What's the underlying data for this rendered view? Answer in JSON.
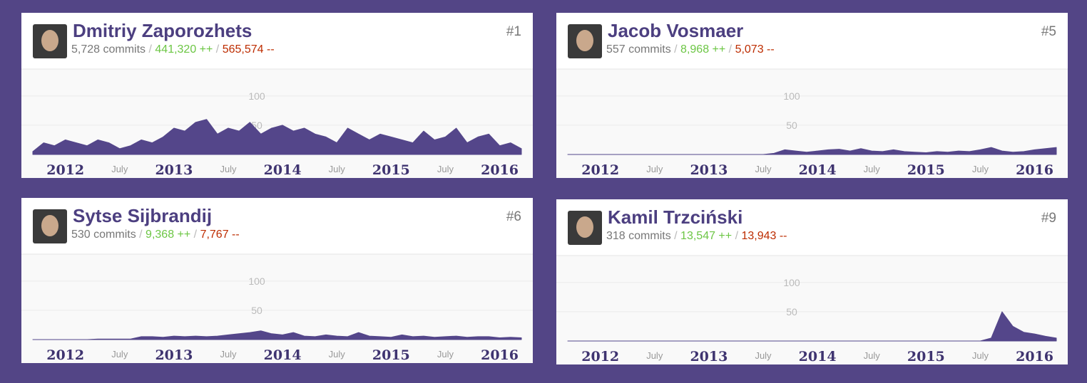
{
  "cards": [
    {
      "name": "Dmitriy Zaporozhets",
      "rank": "#1",
      "commits": "5,728 commits",
      "additions": "441,320 ++",
      "deletions": "565,574 --",
      "chart": {
        "type": "area",
        "color": "#54468a",
        "xlim": [
          2011.7,
          2016.2
        ],
        "ylim": [
          0,
          140
        ],
        "yticks": [
          50,
          100
        ],
        "grid": true,
        "xticks": [
          2012,
          {
            "value": 2012.5,
            "label": "July"
          },
          2013,
          {
            "value": 2013.5,
            "label": "July"
          },
          2014,
          {
            "value": 2014.5,
            "label": "July"
          },
          2015,
          {
            "value": 2015.5,
            "label": "July"
          },
          2016
        ],
        "x": [
          2011.7,
          2011.8,
          2011.9,
          2012.0,
          2012.1,
          2012.2,
          2012.3,
          2012.4,
          2012.5,
          2012.6,
          2012.7,
          2012.8,
          2012.9,
          2013.0,
          2013.1,
          2013.2,
          2013.3,
          2013.4,
          2013.5,
          2013.6,
          2013.7,
          2013.8,
          2013.9,
          2014.0,
          2014.1,
          2014.2,
          2014.3,
          2014.4,
          2014.5,
          2014.6,
          2014.7,
          2014.8,
          2014.9,
          2015.0,
          2015.1,
          2015.2,
          2015.3,
          2015.4,
          2015.5,
          2015.6,
          2015.7,
          2015.8,
          2015.9,
          2016.0,
          2016.1,
          2016.2
        ],
        "values": [
          5,
          20,
          15,
          25,
          20,
          15,
          25,
          20,
          10,
          15,
          25,
          20,
          30,
          45,
          40,
          55,
          60,
          35,
          45,
          40,
          55,
          35,
          45,
          50,
          40,
          45,
          35,
          30,
          20,
          45,
          35,
          25,
          35,
          30,
          25,
          20,
          40,
          25,
          30,
          45,
          20,
          30,
          35,
          15,
          20,
          10
        ]
      }
    },
    {
      "name": "Jacob Vosmaer",
      "rank": "#5",
      "commits": "557 commits",
      "additions": "8,968 ++",
      "deletions": "5,073 --",
      "chart": {
        "type": "area",
        "color": "#54468a",
        "xlim": [
          2011.7,
          2016.2
        ],
        "ylim": [
          0,
          140
        ],
        "yticks": [
          50,
          100
        ],
        "grid": true,
        "xticks": [
          2012,
          {
            "value": 2012.5,
            "label": "July"
          },
          2013,
          {
            "value": 2013.5,
            "label": "July"
          },
          2014,
          {
            "value": 2014.5,
            "label": "July"
          },
          2015,
          {
            "value": 2015.5,
            "label": "July"
          },
          2016
        ],
        "x": [
          2011.7,
          2011.8,
          2011.9,
          2012.0,
          2012.1,
          2012.2,
          2012.3,
          2012.4,
          2012.5,
          2012.6,
          2012.7,
          2012.8,
          2012.9,
          2013.0,
          2013.1,
          2013.2,
          2013.3,
          2013.4,
          2013.5,
          2013.6,
          2013.7,
          2013.8,
          2013.9,
          2014.0,
          2014.1,
          2014.2,
          2014.3,
          2014.4,
          2014.5,
          2014.6,
          2014.7,
          2014.8,
          2014.9,
          2015.0,
          2015.1,
          2015.2,
          2015.3,
          2015.4,
          2015.5,
          2015.6,
          2015.7,
          2015.8,
          2015.9,
          2016.0,
          2016.1,
          2016.2
        ],
        "values": [
          0,
          0,
          0,
          0,
          0,
          0,
          0,
          0,
          0,
          0,
          0,
          0,
          0,
          0,
          0,
          0,
          0,
          0,
          0,
          2,
          8,
          6,
          4,
          6,
          8,
          9,
          6,
          10,
          6,
          5,
          8,
          5,
          4,
          3,
          5,
          4,
          6,
          5,
          8,
          12,
          6,
          4,
          5,
          8,
          10,
          12
        ]
      }
    },
    {
      "name": "Sytse Sijbrandij",
      "rank": "#6",
      "commits": "530 commits",
      "additions": "9,368 ++",
      "deletions": "7,767 --",
      "chart": {
        "type": "area",
        "color": "#54468a",
        "xlim": [
          2011.7,
          2016.2
        ],
        "ylim": [
          0,
          140
        ],
        "yticks": [
          50,
          100
        ],
        "grid": true,
        "xticks": [
          2012,
          {
            "value": 2012.5,
            "label": "July"
          },
          2013,
          {
            "value": 2013.5,
            "label": "July"
          },
          2014,
          {
            "value": 2014.5,
            "label": "July"
          },
          2015,
          {
            "value": 2015.5,
            "label": "July"
          },
          2016
        ],
        "x": [
          2011.7,
          2011.8,
          2011.9,
          2012.0,
          2012.1,
          2012.2,
          2012.3,
          2012.4,
          2012.5,
          2012.6,
          2012.7,
          2012.8,
          2012.9,
          2013.0,
          2013.1,
          2013.2,
          2013.3,
          2013.4,
          2013.5,
          2013.6,
          2013.7,
          2013.8,
          2013.9,
          2014.0,
          2014.1,
          2014.2,
          2014.3,
          2014.4,
          2014.5,
          2014.6,
          2014.7,
          2014.8,
          2014.9,
          2015.0,
          2015.1,
          2015.2,
          2015.3,
          2015.4,
          2015.5,
          2015.6,
          2015.7,
          2015.8,
          2015.9,
          2016.0,
          2016.1,
          2016.2
        ],
        "values": [
          0,
          0,
          0,
          0,
          0,
          0,
          1,
          1,
          1,
          1,
          5,
          5,
          4,
          6,
          5,
          6,
          5,
          6,
          8,
          10,
          12,
          15,
          10,
          8,
          12,
          6,
          5,
          8,
          6,
          5,
          12,
          6,
          5,
          4,
          8,
          5,
          6,
          4,
          5,
          6,
          4,
          5,
          5,
          3,
          4,
          3
        ]
      }
    },
    {
      "name": "Kamil Trzciński",
      "rank": "#9",
      "commits": "318 commits",
      "additions": "13,547 ++",
      "deletions": "13,943 --",
      "chart": {
        "type": "area",
        "color": "#54468a",
        "xlim": [
          2011.7,
          2016.2
        ],
        "ylim": [
          0,
          140
        ],
        "yticks": [
          50,
          100
        ],
        "grid": true,
        "xticks": [
          2012,
          {
            "value": 2012.5,
            "label": "July"
          },
          2013,
          {
            "value": 2013.5,
            "label": "July"
          },
          2014,
          {
            "value": 2014.5,
            "label": "July"
          },
          2015,
          {
            "value": 2015.5,
            "label": "July"
          },
          2016
        ],
        "x": [
          2011.7,
          2011.8,
          2011.9,
          2012.0,
          2012.1,
          2012.2,
          2012.3,
          2012.4,
          2012.5,
          2012.6,
          2012.7,
          2012.8,
          2012.9,
          2013.0,
          2013.1,
          2013.2,
          2013.3,
          2013.4,
          2013.5,
          2013.6,
          2013.7,
          2013.8,
          2013.9,
          2014.0,
          2014.1,
          2014.2,
          2014.3,
          2014.4,
          2014.5,
          2014.6,
          2014.7,
          2014.8,
          2014.9,
          2015.0,
          2015.1,
          2015.2,
          2015.3,
          2015.4,
          2015.5,
          2015.6,
          2015.7,
          2015.8,
          2015.9,
          2016.0,
          2016.1,
          2016.2
        ],
        "values": [
          0,
          0,
          0,
          0,
          0,
          0,
          0,
          0,
          0,
          0,
          0,
          0,
          0,
          0,
          0,
          0,
          0,
          0,
          0,
          0,
          0,
          0,
          0,
          0,
          0,
          0,
          0,
          0,
          0,
          0,
          0,
          0,
          0,
          0,
          0,
          0,
          0,
          0,
          0,
          5,
          50,
          25,
          15,
          12,
          8,
          5
        ]
      }
    }
  ]
}
